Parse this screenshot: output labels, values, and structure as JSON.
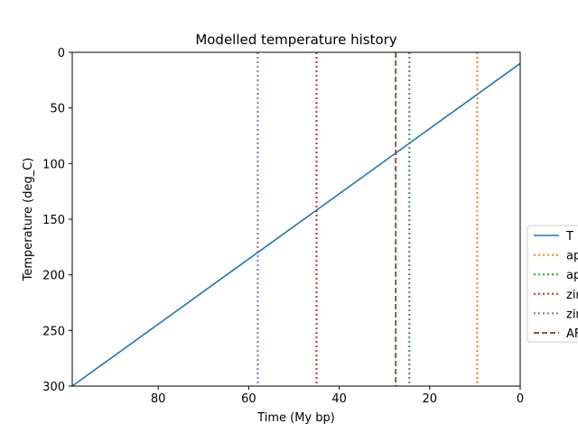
{
  "chart_data": {
    "type": "line",
    "title": "Modelled temperature history",
    "xlabel": "Time (My bp)",
    "ylabel": "Temperature (deg_C)",
    "xlim": [
      99,
      0
    ],
    "ylim": [
      300,
      0
    ],
    "x_inverted": true,
    "y_inverted": true,
    "xticks": [
      80,
      60,
      40,
      20,
      0
    ],
    "yticks": [
      0,
      50,
      100,
      150,
      200,
      250,
      300
    ],
    "grid": false,
    "legend_placement": "right, outside plot",
    "series": [
      {
        "name": "T",
        "kind": "line",
        "style": "solid",
        "color": "#1f77b4",
        "points": [
          [
            99,
            300
          ],
          [
            0,
            10
          ]
        ]
      },
      {
        "name": "ap",
        "kind": "vline",
        "style": "dotted",
        "color": "#ff7f0e",
        "x": 9.5
      },
      {
        "name": "ap",
        "kind": "vline",
        "style": "dotted",
        "color": "#2ca02c",
        "x": 24.5
      },
      {
        "name": "zir",
        "kind": "vline",
        "style": "dotted",
        "color": "#d62728",
        "x": 45
      },
      {
        "name": "zir",
        "kind": "vline",
        "style": "dotted",
        "color": "#9467bd",
        "x": 58
      },
      {
        "name": "AF",
        "kind": "vline",
        "style": "dashed",
        "color": "#8c564b",
        "x": 27.5
      }
    ]
  }
}
